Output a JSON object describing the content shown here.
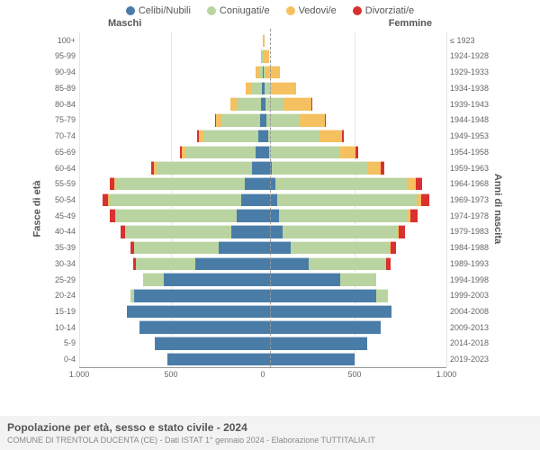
{
  "chart": {
    "type": "population-pyramid",
    "legend": [
      {
        "label": "Celibi/Nubili",
        "color": "#4a7ca8"
      },
      {
        "label": "Coniugati/e",
        "color": "#b9d4a0"
      },
      {
        "label": "Vedovi/e",
        "color": "#f5c060"
      },
      {
        "label": "Divorziati/e",
        "color": "#d93030"
      }
    ],
    "male_header": "Maschi",
    "female_header": "Femmine",
    "y_label_left": "Fasce di età",
    "y_label_right": "Anni di nascita",
    "background_color": "#ffffff",
    "grid_color": "#e5e5e5",
    "axis_color": "#999",
    "label_fontsize": 9,
    "max_value": 1000,
    "x_ticks": [
      {
        "pos": 0,
        "label": "1.000"
      },
      {
        "pos": 25,
        "label": "500"
      },
      {
        "pos": 50,
        "label": "0"
      },
      {
        "pos": 75,
        "label": "500"
      },
      {
        "pos": 100,
        "label": "1.000"
      }
    ],
    "rows": [
      {
        "age": "0-4",
        "birth": "2019-2023",
        "m": {
          "c": 520,
          "co": 0,
          "v": 0,
          "d": 0
        },
        "f": {
          "c": 500,
          "co": 0,
          "v": 0,
          "d": 0
        }
      },
      {
        "age": "5-9",
        "birth": "2014-2018",
        "m": {
          "c": 590,
          "co": 0,
          "v": 0,
          "d": 0
        },
        "f": {
          "c": 570,
          "co": 0,
          "v": 0,
          "d": 0
        }
      },
      {
        "age": "10-14",
        "birth": "2009-2013",
        "m": {
          "c": 670,
          "co": 0,
          "v": 0,
          "d": 0
        },
        "f": {
          "c": 640,
          "co": 0,
          "v": 0,
          "d": 0
        }
      },
      {
        "age": "15-19",
        "birth": "2004-2008",
        "m": {
          "c": 740,
          "co": 0,
          "v": 0,
          "d": 0
        },
        "f": {
          "c": 700,
          "co": 0,
          "v": 0,
          "d": 0
        }
      },
      {
        "age": "20-24",
        "birth": "1999-2003",
        "m": {
          "c": 700,
          "co": 20,
          "v": 0,
          "d": 0
        },
        "f": {
          "c": 620,
          "co": 60,
          "v": 0,
          "d": 0
        }
      },
      {
        "age": "25-29",
        "birth": "1994-1998",
        "m": {
          "c": 540,
          "co": 110,
          "v": 0,
          "d": 0
        },
        "f": {
          "c": 420,
          "co": 200,
          "v": 0,
          "d": 0
        }
      },
      {
        "age": "30-34",
        "birth": "1989-1993",
        "m": {
          "c": 370,
          "co": 320,
          "v": 0,
          "d": 15
        },
        "f": {
          "c": 250,
          "co": 420,
          "v": 0,
          "d": 25
        }
      },
      {
        "age": "35-39",
        "birth": "1984-1988",
        "m": {
          "c": 240,
          "co": 460,
          "v": 0,
          "d": 20
        },
        "f": {
          "c": 150,
          "co": 540,
          "v": 5,
          "d": 30
        }
      },
      {
        "age": "40-44",
        "birth": "1979-1983",
        "m": {
          "c": 170,
          "co": 580,
          "v": 0,
          "d": 25
        },
        "f": {
          "c": 110,
          "co": 620,
          "v": 10,
          "d": 35
        }
      },
      {
        "age": "45-49",
        "birth": "1974-1978",
        "m": {
          "c": 140,
          "co": 660,
          "v": 5,
          "d": 30
        },
        "f": {
          "c": 90,
          "co": 700,
          "v": 15,
          "d": 40
        }
      },
      {
        "age": "50-54",
        "birth": "1969-1973",
        "m": {
          "c": 120,
          "co": 720,
          "v": 5,
          "d": 30
        },
        "f": {
          "c": 80,
          "co": 760,
          "v": 25,
          "d": 40
        }
      },
      {
        "age": "55-59",
        "birth": "1964-1968",
        "m": {
          "c": 100,
          "co": 700,
          "v": 10,
          "d": 25
        },
        "f": {
          "c": 70,
          "co": 720,
          "v": 45,
          "d": 35
        }
      },
      {
        "age": "60-64",
        "birth": "1959-1963",
        "m": {
          "c": 60,
          "co": 520,
          "v": 15,
          "d": 15
        },
        "f": {
          "c": 50,
          "co": 520,
          "v": 70,
          "d": 20
        }
      },
      {
        "age": "65-69",
        "birth": "1954-1958",
        "m": {
          "c": 40,
          "co": 380,
          "v": 20,
          "d": 10
        },
        "f": {
          "c": 35,
          "co": 380,
          "v": 90,
          "d": 15
        }
      },
      {
        "age": "70-74",
        "birth": "1949-1953",
        "m": {
          "c": 25,
          "co": 300,
          "v": 25,
          "d": 8
        },
        "f": {
          "c": 30,
          "co": 280,
          "v": 120,
          "d": 10
        }
      },
      {
        "age": "75-79",
        "birth": "1944-1948",
        "m": {
          "c": 15,
          "co": 210,
          "v": 30,
          "d": 5
        },
        "f": {
          "c": 20,
          "co": 180,
          "v": 140,
          "d": 5
        }
      },
      {
        "age": "80-84",
        "birth": "1939-1943",
        "m": {
          "c": 10,
          "co": 130,
          "v": 35,
          "d": 3
        },
        "f": {
          "c": 15,
          "co": 100,
          "v": 150,
          "d": 3
        }
      },
      {
        "age": "85-89",
        "birth": "1934-1938",
        "m": {
          "c": 5,
          "co": 60,
          "v": 30,
          "d": 0
        },
        "f": {
          "c": 10,
          "co": 40,
          "v": 130,
          "d": 0
        }
      },
      {
        "age": "90-94",
        "birth": "1929-1933",
        "m": {
          "c": 2,
          "co": 15,
          "v": 20,
          "d": 0
        },
        "f": {
          "c": 5,
          "co": 10,
          "v": 80,
          "d": 0
        }
      },
      {
        "age": "95-99",
        "birth": "1924-1928",
        "m": {
          "c": 0,
          "co": 3,
          "v": 8,
          "d": 0
        },
        "f": {
          "c": 2,
          "co": 3,
          "v": 30,
          "d": 0
        }
      },
      {
        "age": "100+",
        "birth": "≤ 1923",
        "m": {
          "c": 0,
          "co": 0,
          "v": 2,
          "d": 0
        },
        "f": {
          "c": 0,
          "co": 0,
          "v": 8,
          "d": 0
        }
      }
    ]
  },
  "footer": {
    "title": "Popolazione per età, sesso e stato civile - 2024",
    "subtitle": "COMUNE DI TRENTOLA DUCENTA (CE) - Dati ISTAT 1° gennaio 2024 - Elaborazione TUTTITALIA.IT"
  }
}
